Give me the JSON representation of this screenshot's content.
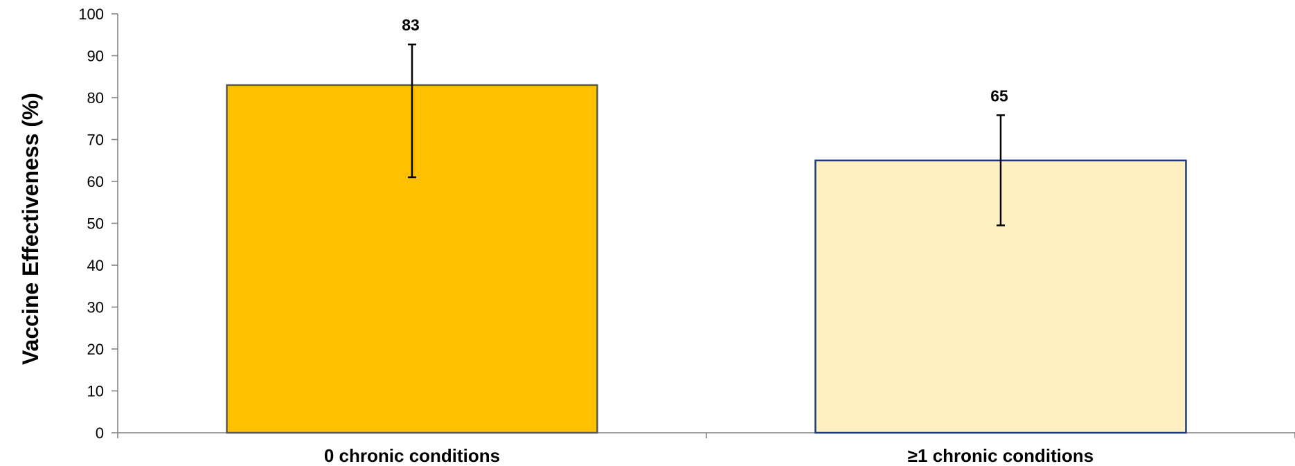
{
  "chart_data": {
    "type": "bar",
    "title": "",
    "xlabel": "",
    "ylabel": "Vaccine Effectiveness (%)",
    "ylim": [
      0,
      100
    ],
    "yticks": [
      0,
      10,
      20,
      30,
      40,
      50,
      60,
      70,
      80,
      90,
      100
    ],
    "grid": false,
    "legend": "none",
    "categories": [
      "0 chronic conditions",
      "≥1 chronic conditions"
    ],
    "values": [
      83,
      65
    ],
    "data_labels": [
      "83",
      "65"
    ],
    "error_bars": [
      {
        "low": 61,
        "high": 92.7
      },
      {
        "low": 49.5,
        "high": 75.8
      }
    ],
    "bar_fill_colors": [
      "#FFC000",
      "#FFF0C1"
    ],
    "bar_stroke_colors": [
      "#595959",
      "#1F3A7A"
    ]
  }
}
